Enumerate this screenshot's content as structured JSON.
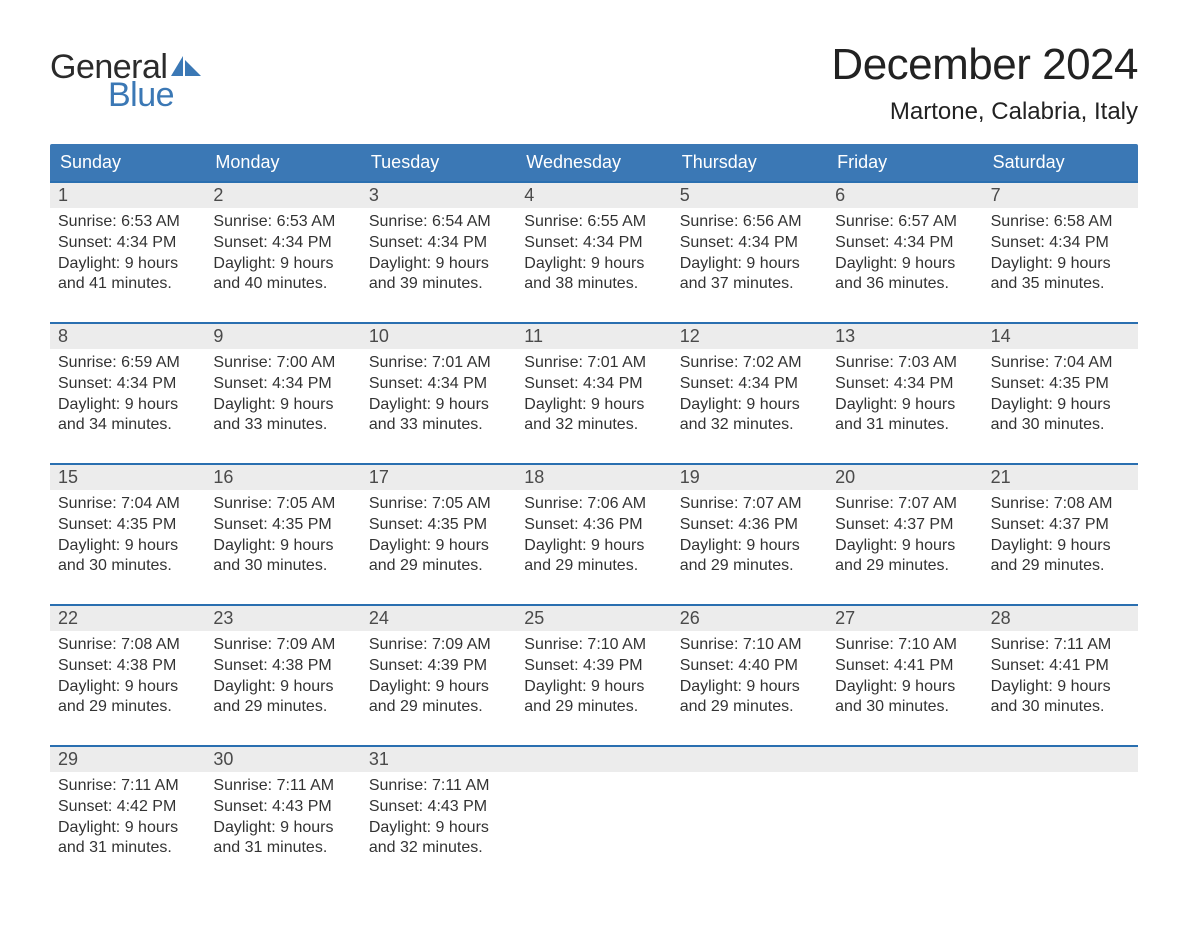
{
  "logo": {
    "line1": "General",
    "line2": "Blue",
    "sail_color": "#3b78b5"
  },
  "header": {
    "month_title": "December 2024",
    "location": "Martone, Calabria, Italy"
  },
  "colors": {
    "header_blue": "#3b78b5",
    "accent_blue": "#2a6fb0",
    "row_grey": "#ececec",
    "text_dark": "#222222",
    "bg": "#ffffff"
  },
  "weekdays": [
    "Sunday",
    "Monday",
    "Tuesday",
    "Wednesday",
    "Thursday",
    "Friday",
    "Saturday"
  ],
  "weeks": [
    [
      {
        "n": "1",
        "sunrise": "Sunrise: 6:53 AM",
        "sunset": "Sunset: 4:34 PM",
        "dl1": "Daylight: 9 hours",
        "dl2": "and 41 minutes."
      },
      {
        "n": "2",
        "sunrise": "Sunrise: 6:53 AM",
        "sunset": "Sunset: 4:34 PM",
        "dl1": "Daylight: 9 hours",
        "dl2": "and 40 minutes."
      },
      {
        "n": "3",
        "sunrise": "Sunrise: 6:54 AM",
        "sunset": "Sunset: 4:34 PM",
        "dl1": "Daylight: 9 hours",
        "dl2": "and 39 minutes."
      },
      {
        "n": "4",
        "sunrise": "Sunrise: 6:55 AM",
        "sunset": "Sunset: 4:34 PM",
        "dl1": "Daylight: 9 hours",
        "dl2": "and 38 minutes."
      },
      {
        "n": "5",
        "sunrise": "Sunrise: 6:56 AM",
        "sunset": "Sunset: 4:34 PM",
        "dl1": "Daylight: 9 hours",
        "dl2": "and 37 minutes."
      },
      {
        "n": "6",
        "sunrise": "Sunrise: 6:57 AM",
        "sunset": "Sunset: 4:34 PM",
        "dl1": "Daylight: 9 hours",
        "dl2": "and 36 minutes."
      },
      {
        "n": "7",
        "sunrise": "Sunrise: 6:58 AM",
        "sunset": "Sunset: 4:34 PM",
        "dl1": "Daylight: 9 hours",
        "dl2": "and 35 minutes."
      }
    ],
    [
      {
        "n": "8",
        "sunrise": "Sunrise: 6:59 AM",
        "sunset": "Sunset: 4:34 PM",
        "dl1": "Daylight: 9 hours",
        "dl2": "and 34 minutes."
      },
      {
        "n": "9",
        "sunrise": "Sunrise: 7:00 AM",
        "sunset": "Sunset: 4:34 PM",
        "dl1": "Daylight: 9 hours",
        "dl2": "and 33 minutes."
      },
      {
        "n": "10",
        "sunrise": "Sunrise: 7:01 AM",
        "sunset": "Sunset: 4:34 PM",
        "dl1": "Daylight: 9 hours",
        "dl2": "and 33 minutes."
      },
      {
        "n": "11",
        "sunrise": "Sunrise: 7:01 AM",
        "sunset": "Sunset: 4:34 PM",
        "dl1": "Daylight: 9 hours",
        "dl2": "and 32 minutes."
      },
      {
        "n": "12",
        "sunrise": "Sunrise: 7:02 AM",
        "sunset": "Sunset: 4:34 PM",
        "dl1": "Daylight: 9 hours",
        "dl2": "and 32 minutes."
      },
      {
        "n": "13",
        "sunrise": "Sunrise: 7:03 AM",
        "sunset": "Sunset: 4:34 PM",
        "dl1": "Daylight: 9 hours",
        "dl2": "and 31 minutes."
      },
      {
        "n": "14",
        "sunrise": "Sunrise: 7:04 AM",
        "sunset": "Sunset: 4:35 PM",
        "dl1": "Daylight: 9 hours",
        "dl2": "and 30 minutes."
      }
    ],
    [
      {
        "n": "15",
        "sunrise": "Sunrise: 7:04 AM",
        "sunset": "Sunset: 4:35 PM",
        "dl1": "Daylight: 9 hours",
        "dl2": "and 30 minutes."
      },
      {
        "n": "16",
        "sunrise": "Sunrise: 7:05 AM",
        "sunset": "Sunset: 4:35 PM",
        "dl1": "Daylight: 9 hours",
        "dl2": "and 30 minutes."
      },
      {
        "n": "17",
        "sunrise": "Sunrise: 7:05 AM",
        "sunset": "Sunset: 4:35 PM",
        "dl1": "Daylight: 9 hours",
        "dl2": "and 29 minutes."
      },
      {
        "n": "18",
        "sunrise": "Sunrise: 7:06 AM",
        "sunset": "Sunset: 4:36 PM",
        "dl1": "Daylight: 9 hours",
        "dl2": "and 29 minutes."
      },
      {
        "n": "19",
        "sunrise": "Sunrise: 7:07 AM",
        "sunset": "Sunset: 4:36 PM",
        "dl1": "Daylight: 9 hours",
        "dl2": "and 29 minutes."
      },
      {
        "n": "20",
        "sunrise": "Sunrise: 7:07 AM",
        "sunset": "Sunset: 4:37 PM",
        "dl1": "Daylight: 9 hours",
        "dl2": "and 29 minutes."
      },
      {
        "n": "21",
        "sunrise": "Sunrise: 7:08 AM",
        "sunset": "Sunset: 4:37 PM",
        "dl1": "Daylight: 9 hours",
        "dl2": "and 29 minutes."
      }
    ],
    [
      {
        "n": "22",
        "sunrise": "Sunrise: 7:08 AM",
        "sunset": "Sunset: 4:38 PM",
        "dl1": "Daylight: 9 hours",
        "dl2": "and 29 minutes."
      },
      {
        "n": "23",
        "sunrise": "Sunrise: 7:09 AM",
        "sunset": "Sunset: 4:38 PM",
        "dl1": "Daylight: 9 hours",
        "dl2": "and 29 minutes."
      },
      {
        "n": "24",
        "sunrise": "Sunrise: 7:09 AM",
        "sunset": "Sunset: 4:39 PM",
        "dl1": "Daylight: 9 hours",
        "dl2": "and 29 minutes."
      },
      {
        "n": "25",
        "sunrise": "Sunrise: 7:10 AM",
        "sunset": "Sunset: 4:39 PM",
        "dl1": "Daylight: 9 hours",
        "dl2": "and 29 minutes."
      },
      {
        "n": "26",
        "sunrise": "Sunrise: 7:10 AM",
        "sunset": "Sunset: 4:40 PM",
        "dl1": "Daylight: 9 hours",
        "dl2": "and 29 minutes."
      },
      {
        "n": "27",
        "sunrise": "Sunrise: 7:10 AM",
        "sunset": "Sunset: 4:41 PM",
        "dl1": "Daylight: 9 hours",
        "dl2": "and 30 minutes."
      },
      {
        "n": "28",
        "sunrise": "Sunrise: 7:11 AM",
        "sunset": "Sunset: 4:41 PM",
        "dl1": "Daylight: 9 hours",
        "dl2": "and 30 minutes."
      }
    ],
    [
      {
        "n": "29",
        "sunrise": "Sunrise: 7:11 AM",
        "sunset": "Sunset: 4:42 PM",
        "dl1": "Daylight: 9 hours",
        "dl2": "and 31 minutes."
      },
      {
        "n": "30",
        "sunrise": "Sunrise: 7:11 AM",
        "sunset": "Sunset: 4:43 PM",
        "dl1": "Daylight: 9 hours",
        "dl2": "and 31 minutes."
      },
      {
        "n": "31",
        "sunrise": "Sunrise: 7:11 AM",
        "sunset": "Sunset: 4:43 PM",
        "dl1": "Daylight: 9 hours",
        "dl2": "and 32 minutes."
      },
      {
        "n": "",
        "empty": true
      },
      {
        "n": "",
        "empty": true
      },
      {
        "n": "",
        "empty": true
      },
      {
        "n": "",
        "empty": true
      }
    ]
  ]
}
